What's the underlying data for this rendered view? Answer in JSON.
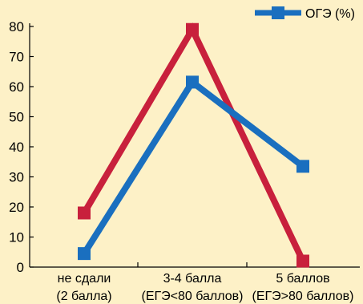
{
  "chart_data": {
    "type": "line",
    "categories": [
      [
        "не сдали",
        "(2 балла)"
      ],
      [
        "3-4 балла",
        "(ЕГЭ<80 баллов)"
      ],
      [
        "5 баллов",
        "(ЕГЭ>80 баллов)"
      ]
    ],
    "series": [
      {
        "name": "",
        "color": "#c8203c",
        "values": [
          18,
          79,
          2
        ]
      },
      {
        "name": "ОГЭ (%)",
        "color": "#1a6fbf",
        "values": [
          4.5,
          61.5,
          33.5
        ]
      }
    ],
    "ylim": [
      0,
      80
    ],
    "yticks": [
      "0",
      "10",
      "20",
      "30",
      "40",
      "50",
      "60",
      "70",
      "80"
    ],
    "legend": {
      "position": "top-right",
      "entries": [
        "ОГЭ (%)"
      ]
    },
    "grid": false
  }
}
